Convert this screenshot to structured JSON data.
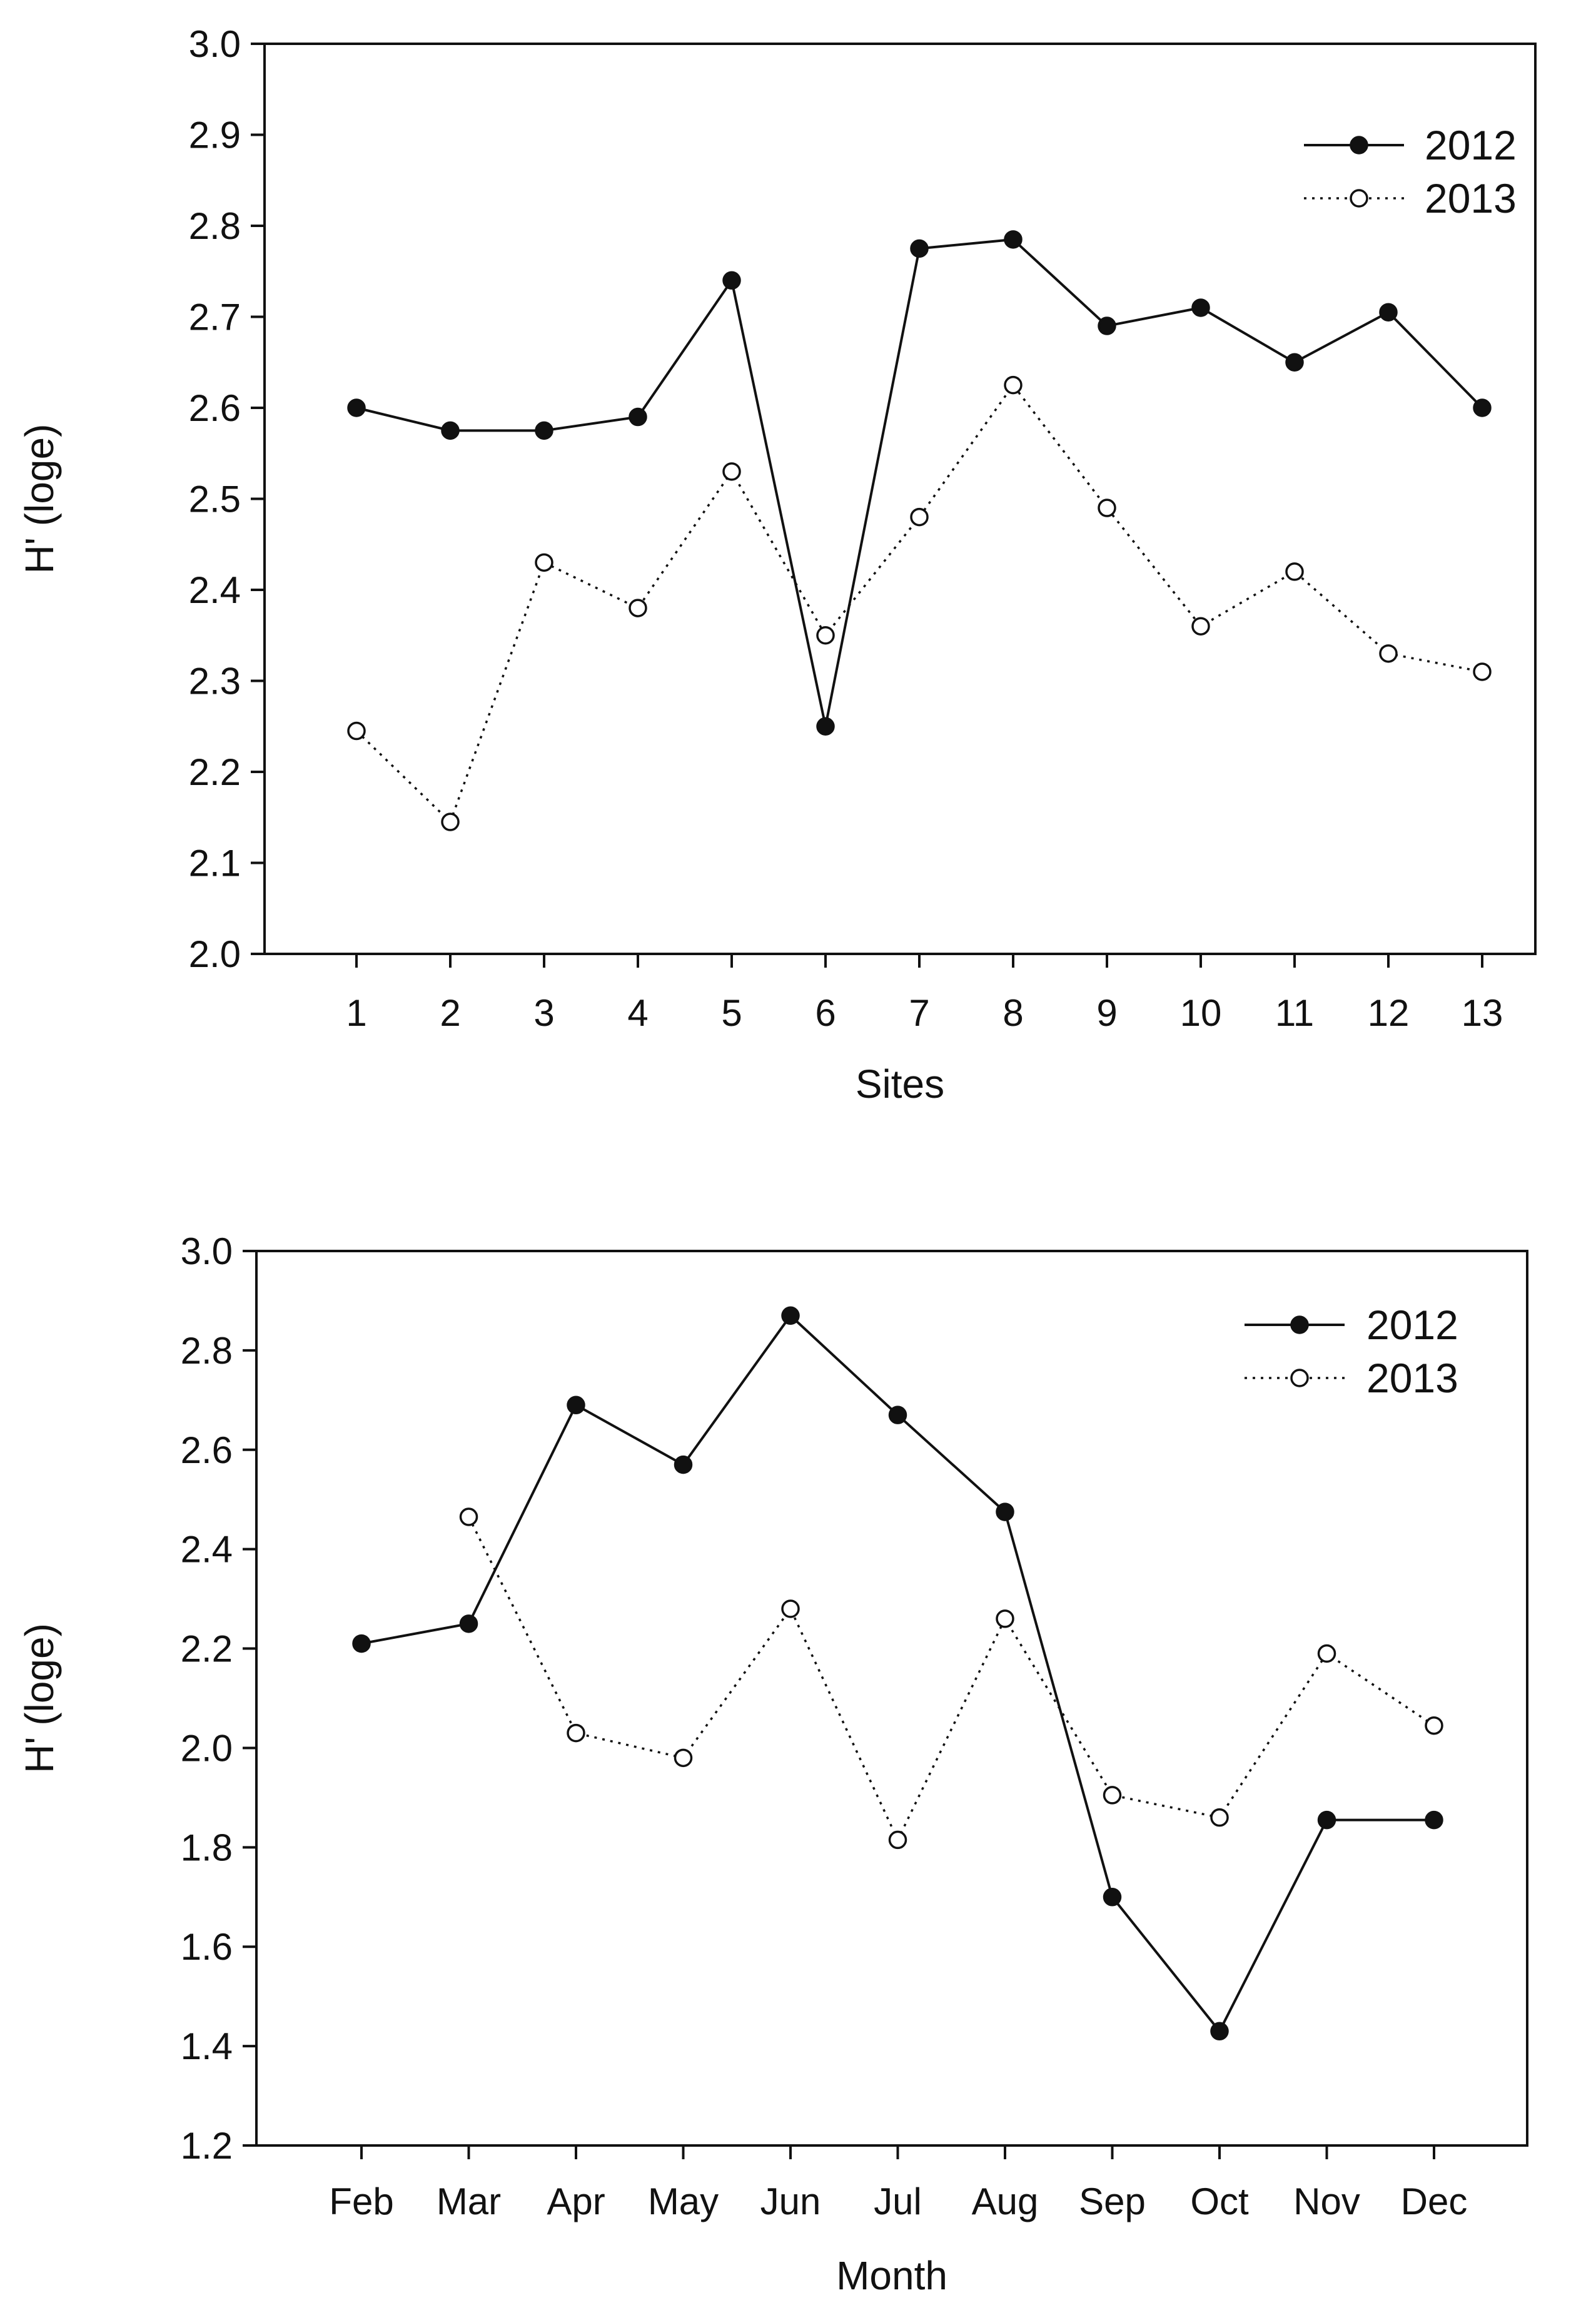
{
  "chart_data": [
    {
      "type": "line",
      "title": "",
      "xlabel": "Sites",
      "ylabel": "H' (loge)",
      "categories": [
        "1",
        "2",
        "3",
        "4",
        "5",
        "6",
        "7",
        "8",
        "9",
        "10",
        "11",
        "12",
        "13"
      ],
      "ylim": [
        2.0,
        3.0
      ],
      "yticks": [
        "2.0",
        "2.1",
        "2.2",
        "2.3",
        "2.4",
        "2.5",
        "2.6",
        "2.7",
        "2.8",
        "2.9",
        "3.0"
      ],
      "grid": false,
      "legend": "top-right",
      "series": [
        {
          "name": "2012",
          "marker": "filled-circle",
          "line": "solid",
          "values": [
            2.6,
            2.575,
            2.575,
            2.59,
            2.74,
            2.25,
            2.775,
            2.785,
            2.69,
            2.71,
            2.65,
            2.705,
            2.6
          ]
        },
        {
          "name": "2013",
          "marker": "open-circle",
          "line": "dotted",
          "values": [
            2.245,
            2.145,
            2.43,
            2.38,
            2.53,
            2.35,
            2.48,
            2.625,
            2.49,
            2.36,
            2.42,
            2.33,
            2.31
          ]
        }
      ]
    },
    {
      "type": "line",
      "title": "",
      "xlabel": "Month",
      "ylabel": "H' (loge)",
      "categories": [
        "Feb",
        "Mar",
        "Apr",
        "May",
        "Jun",
        "Jul",
        "Aug",
        "Sep",
        "Oct",
        "Nov",
        "Dec"
      ],
      "ylim": [
        1.2,
        3.0
      ],
      "yticks": [
        "1.2",
        "1.4",
        "1.6",
        "1.8",
        "2.0",
        "2.2",
        "2.4",
        "2.6",
        "2.8",
        "3.0"
      ],
      "grid": false,
      "legend": "top-right",
      "series": [
        {
          "name": "2012",
          "marker": "filled-circle",
          "line": "solid",
          "values": [
            2.21,
            2.25,
            2.69,
            2.57,
            2.87,
            2.67,
            2.475,
            1.7,
            1.43,
            1.855,
            1.855
          ]
        },
        {
          "name": "2013",
          "marker": "open-circle",
          "line": "dotted",
          "values": [
            null,
            2.465,
            2.03,
            1.98,
            2.28,
            1.815,
            2.26,
            1.905,
            1.86,
            2.19,
            2.045
          ]
        }
      ]
    }
  ]
}
